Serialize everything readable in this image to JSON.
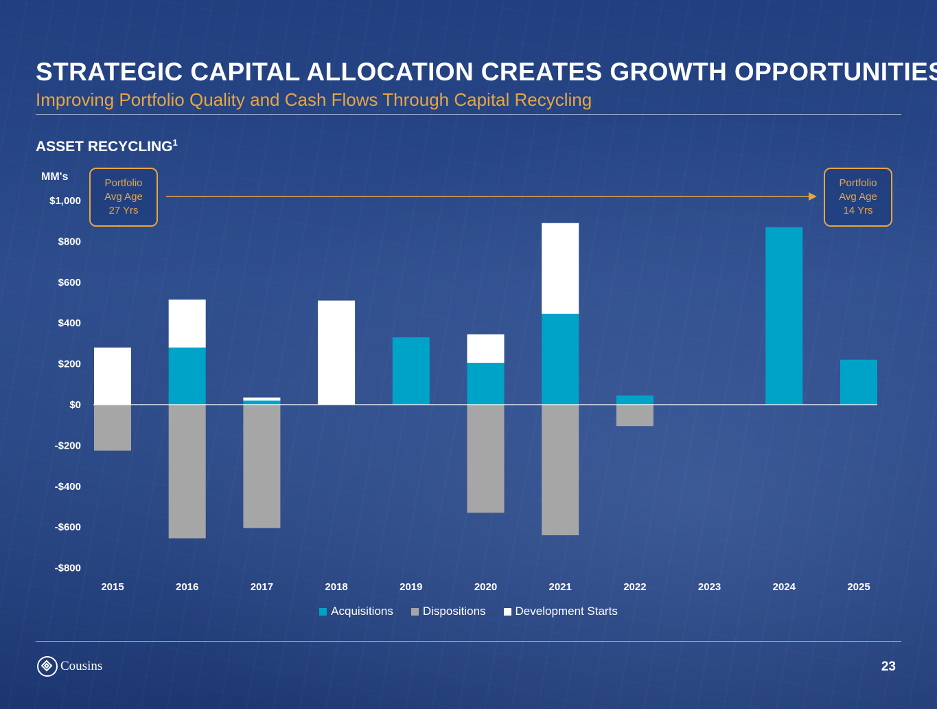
{
  "slide": {
    "title": "STRATEGIC CAPITAL ALLOCATION CREATES GROWTH OPPORTUNITIES",
    "subtitle": "Improving Portfolio Quality and Cash Flows Through Capital Recycling",
    "section_heading": "ASSET RECYCLING",
    "section_footnote_marker": "1",
    "page_number": "23",
    "logo_text": "Cousins"
  },
  "callouts": {
    "left": [
      "Portfolio",
      "Avg Age",
      "27 Yrs"
    ],
    "right": [
      "Portfolio",
      "Avg Age",
      "14 Yrs"
    ]
  },
  "colors": {
    "acquisitions": "#00a3c8",
    "dispositions": "#a6a6a6",
    "development_starts": "#ffffff",
    "accent": "#e8a640"
  },
  "chart_data": {
    "type": "bar",
    "stacked": true,
    "unit_label": "MM's",
    "categories": [
      "2015",
      "2016",
      "2017",
      "2018",
      "2019",
      "2020",
      "2021",
      "2022",
      "2023",
      "2024",
      "2025"
    ],
    "series": [
      {
        "name": "Acquisitions",
        "values": [
          0,
          280,
          20,
          0,
          330,
          205,
          445,
          45,
          0,
          870,
          220
        ]
      },
      {
        "name": "Dispositions",
        "values": [
          -225,
          -655,
          -605,
          0,
          0,
          -530,
          -640,
          -105,
          0,
          0,
          0
        ]
      },
      {
        "name": "Development Starts",
        "values": [
          280,
          235,
          15,
          510,
          0,
          140,
          445,
          0,
          0,
          0,
          0
        ]
      }
    ],
    "yticks": [
      1000,
      800,
      600,
      400,
      200,
      0,
      -200,
      -400,
      -600,
      -800
    ],
    "ytick_labels": [
      "$1,000",
      "$800",
      "$600",
      "$400",
      "$200",
      "$0",
      "-$200",
      "-$400",
      "-$600",
      "-$800"
    ],
    "ylim": [
      -800,
      1000
    ],
    "grid": false,
    "legend_position": "bottom"
  }
}
